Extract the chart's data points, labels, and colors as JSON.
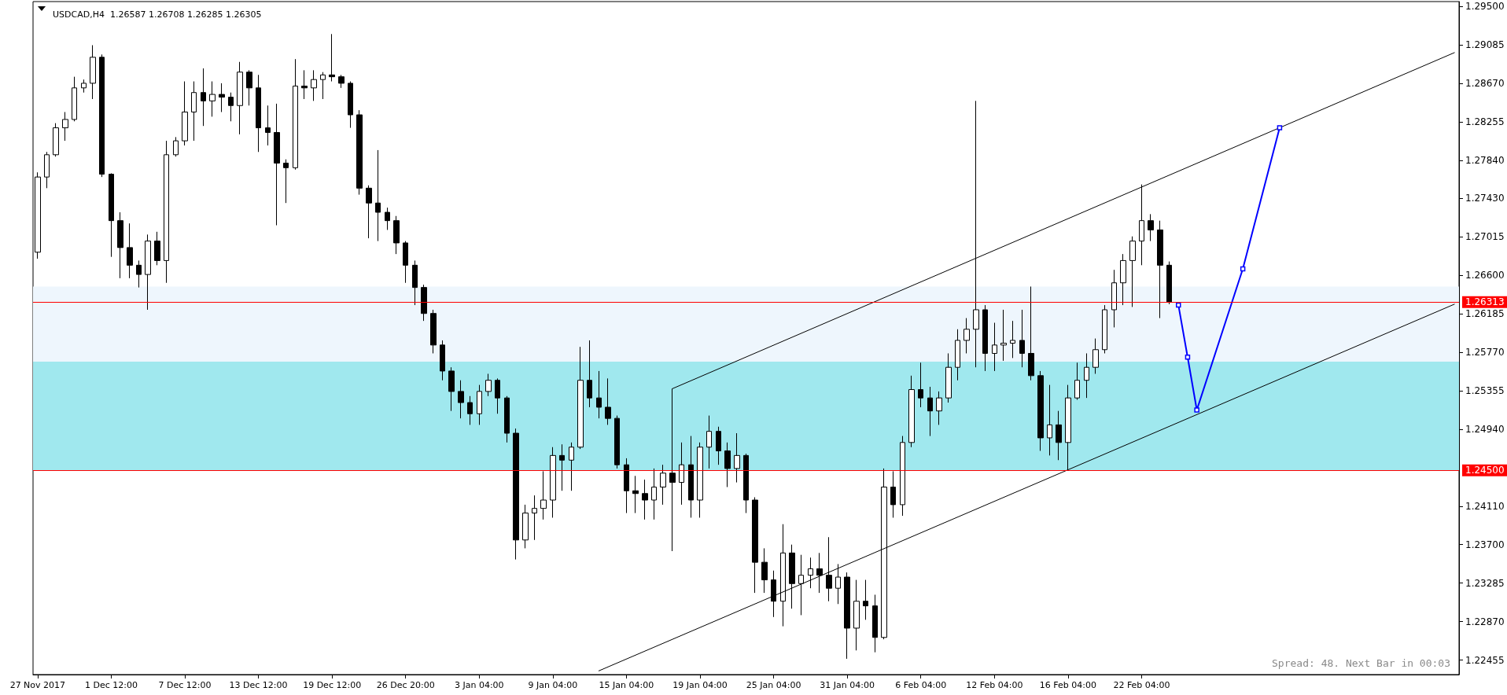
{
  "chart_data": {
    "type": "candlestick",
    "title": "USDCAD,H4  1.26587 1.26708 1.26285 1.26305",
    "annotations": [
      "Spread: 48. Next Bar in 00:03"
    ],
    "color": "#000000",
    "categories": [
      "27 Nov 2017",
      null,
      null,
      null,
      null,
      null,
      null,
      null,
      "1 Dec 12:00",
      null,
      null,
      null,
      null,
      null,
      null,
      null,
      "7 Dec 12:00",
      null,
      null,
      null,
      null,
      null,
      null,
      null,
      "13 Dec 12:00",
      null,
      null,
      null,
      null,
      null,
      null,
      null,
      "19 Dec 12:00",
      null,
      null,
      null,
      null,
      null,
      null,
      null,
      "26 Dec 20:00",
      null,
      null,
      null,
      null,
      null,
      null,
      null,
      "3 Jan 04:00",
      null,
      null,
      null,
      null,
      null,
      null,
      null,
      "9 Jan 04:00",
      null,
      null,
      null,
      null,
      null,
      null,
      null,
      "15 Jan 04:00",
      null,
      null,
      null,
      null,
      null,
      null,
      null,
      "19 Jan 04:00",
      null,
      null,
      null,
      null,
      null,
      null,
      null,
      "25 Jan 04:00",
      null,
      null,
      null,
      null,
      null,
      null,
      null,
      "31 Jan 04:00",
      null,
      null,
      null,
      null,
      null,
      null,
      null,
      "6 Feb 04:00",
      null,
      null,
      null,
      null,
      null,
      null,
      null,
      "12 Feb 04:00",
      null,
      null,
      null,
      null,
      null,
      null,
      null,
      "16 Feb 04:00",
      null,
      null,
      null,
      null,
      null,
      null,
      null,
      "22 Feb 04:00",
      null,
      null,
      null,
      null,
      null,
      null,
      null,
      null,
      null,
      null,
      null,
      null,
      null,
      null,
      null,
      null,
      null,
      null,
      null,
      null,
      null,
      null,
      null,
      null,
      null,
      null,
      null,
      null,
      null,
      null,
      null,
      null,
      null,
      null
    ],
    "ohlc": [
      [
        1.2685,
        1.2771,
        1.2678,
        1.2766
      ],
      [
        1.2766,
        1.2793,
        1.2754,
        1.279
      ],
      [
        1.279,
        1.2824,
        1.2788,
        1.2819
      ],
      [
        1.2819,
        1.2836,
        1.2805,
        1.2828
      ],
      [
        1.2828,
        1.2874,
        1.2826,
        1.2862
      ],
      [
        1.2862,
        1.2871,
        1.2857,
        1.2867
      ],
      [
        1.2867,
        1.2908,
        1.285,
        1.2895
      ],
      [
        1.2895,
        1.2898,
        1.2766,
        1.2769
      ],
      [
        1.2769,
        1.277,
        1.268,
        1.2719
      ],
      [
        1.2719,
        1.2728,
        1.2657,
        1.269
      ],
      [
        1.269,
        1.2716,
        1.2657,
        1.2671
      ],
      [
        1.2671,
        1.2676,
        1.2647,
        1.2661
      ],
      [
        1.2661,
        1.2704,
        1.2623,
        1.2697
      ],
      [
        1.2697,
        1.2707,
        1.2671,
        1.2676
      ],
      [
        1.2676,
        1.2805,
        1.2652,
        1.279
      ],
      [
        1.279,
        1.2809,
        1.2788,
        1.2805
      ],
      [
        1.2805,
        1.2869,
        1.28,
        1.2836
      ],
      [
        1.2836,
        1.2869,
        1.2805,
        1.2857
      ],
      [
        1.2857,
        1.2883,
        1.2821,
        1.2848
      ],
      [
        1.2848,
        1.2869,
        1.2831,
        1.2855
      ],
      [
        1.2855,
        1.2867,
        1.2836,
        1.2852
      ],
      [
        1.2852,
        1.2857,
        1.2826,
        1.2843
      ],
      [
        1.2843,
        1.289,
        1.2812,
        1.2879
      ],
      [
        1.2879,
        1.2881,
        1.2843,
        1.2862
      ],
      [
        1.2862,
        1.2876,
        1.2793,
        1.2819
      ],
      [
        1.2819,
        1.2843,
        1.28,
        1.2814
      ],
      [
        1.2814,
        1.2845,
        1.2714,
        1.2781
      ],
      [
        1.2781,
        1.2785,
        1.2738,
        1.2776
      ],
      [
        1.2776,
        1.2893,
        1.2774,
        1.2864
      ],
      [
        1.2864,
        1.2881,
        1.285,
        1.2862
      ],
      [
        1.2862,
        1.2881,
        1.2848,
        1.2871
      ],
      [
        1.2871,
        1.2879,
        1.285,
        1.2876
      ],
      [
        1.2876,
        1.292,
        1.2869,
        1.2874
      ],
      [
        1.2874,
        1.2876,
        1.2862,
        1.2867
      ],
      [
        1.2867,
        1.2869,
        1.2819,
        1.2833
      ],
      [
        1.2833,
        1.2838,
        1.2747,
        1.2754
      ],
      [
        1.2754,
        1.2757,
        1.27,
        1.2738
      ],
      [
        1.2738,
        1.2795,
        1.2697,
        1.2728
      ],
      [
        1.2728,
        1.2733,
        1.2709,
        1.2719
      ],
      [
        1.2719,
        1.2724,
        1.2683,
        1.2695
      ],
      [
        1.2695,
        1.2697,
        1.2652,
        1.2671
      ],
      [
        1.2671,
        1.2676,
        1.2628,
        1.2647
      ],
      [
        1.2647,
        1.265,
        1.2611,
        1.2619
      ],
      [
        1.2619,
        1.2623,
        1.2576,
        1.2585
      ],
      [
        1.2585,
        1.259,
        1.2547,
        1.2557
      ],
      [
        1.2557,
        1.2561,
        1.2514,
        1.2535
      ],
      [
        1.2535,
        1.2547,
        1.2506,
        1.2523
      ],
      [
        1.2523,
        1.253,
        1.2499,
        1.2511
      ],
      [
        1.2511,
        1.2542,
        1.2499,
        1.2535
      ],
      [
        1.2535,
        1.2554,
        1.253,
        1.2547
      ],
      [
        1.2547,
        1.2549,
        1.2511,
        1.2528
      ],
      [
        1.2528,
        1.253,
        1.248,
        1.249
      ],
      [
        1.249,
        1.2495,
        1.2354,
        1.2375
      ],
      [
        1.2375,
        1.2413,
        1.2366,
        1.2404
      ],
      [
        1.2404,
        1.2423,
        1.2375,
        1.2409
      ],
      [
        1.2409,
        1.2449,
        1.2397,
        1.2418
      ],
      [
        1.2418,
        1.2475,
        1.2399,
        1.2466
      ],
      [
        1.2466,
        1.2478,
        1.2428,
        1.2461
      ],
      [
        1.2461,
        1.248,
        1.2428,
        1.2475
      ],
      [
        1.2475,
        1.2583,
        1.2473,
        1.2547
      ],
      [
        1.2547,
        1.259,
        1.2518,
        1.2528
      ],
      [
        1.2528,
        1.2557,
        1.2506,
        1.2518
      ],
      [
        1.2518,
        1.2549,
        1.2499,
        1.2506
      ],
      [
        1.2506,
        1.2509,
        1.2452,
        1.2456
      ],
      [
        1.2456,
        1.2463,
        1.2404,
        1.2428
      ],
      [
        1.2428,
        1.2444,
        1.2404,
        1.2425
      ],
      [
        1.2425,
        1.244,
        1.2397,
        1.2418
      ],
      [
        1.2418,
        1.2452,
        1.2397,
        1.2432
      ],
      [
        1.2432,
        1.2456,
        1.2413,
        1.2447
      ],
      [
        1.2447,
        1.2538,
        1.2363,
        1.2437
      ],
      [
        1.2437,
        1.248,
        1.2413,
        1.2456
      ],
      [
        1.2456,
        1.2487,
        1.2399,
        1.2418
      ],
      [
        1.2418,
        1.248,
        1.2399,
        1.2475
      ],
      [
        1.2475,
        1.2509,
        1.2452,
        1.2492
      ],
      [
        1.2492,
        1.2497,
        1.2456,
        1.2471
      ],
      [
        1.2471,
        1.248,
        1.2432,
        1.2452
      ],
      [
        1.2452,
        1.249,
        1.2437,
        1.2466
      ],
      [
        1.2466,
        1.2468,
        1.2404,
        1.2418
      ],
      [
        1.2418,
        1.2421,
        1.2318,
        1.2351
      ],
      [
        1.2351,
        1.2366,
        1.2318,
        1.2332
      ],
      [
        1.2332,
        1.2342,
        1.2292,
        1.2309
      ],
      [
        1.2309,
        1.2392,
        1.2282,
        1.2361
      ],
      [
        1.2361,
        1.237,
        1.2301,
        1.2328
      ],
      [
        1.2328,
        1.2359,
        1.2294,
        1.2337
      ],
      [
        1.2337,
        1.2356,
        1.2323,
        1.2344
      ],
      [
        1.2344,
        1.2361,
        1.2318,
        1.2337
      ],
      [
        1.2337,
        1.2378,
        1.2309,
        1.2323
      ],
      [
        1.2323,
        1.2349,
        1.2306,
        1.2335
      ],
      [
        1.2335,
        1.234,
        1.2247,
        1.228
      ],
      [
        1.228,
        1.2332,
        1.2256,
        1.2309
      ],
      [
        1.2309,
        1.2332,
        1.2289,
        1.2304
      ],
      [
        1.2304,
        1.2316,
        1.2254,
        1.227
      ],
      [
        1.227,
        1.2452,
        1.2268,
        1.2432
      ],
      [
        1.2432,
        1.2449,
        1.2399,
        1.2413
      ],
      [
        1.2413,
        1.2487,
        1.2401,
        1.248
      ],
      [
        1.248,
        1.2552,
        1.2475,
        1.2537
      ],
      [
        1.2537,
        1.2566,
        1.2518,
        1.2528
      ],
      [
        1.2528,
        1.254,
        1.2487,
        1.2514
      ],
      [
        1.2514,
        1.2535,
        1.2499,
        1.2528
      ],
      [
        1.2528,
        1.2576,
        1.2523,
        1.2561
      ],
      [
        1.2561,
        1.2602,
        1.2547,
        1.259
      ],
      [
        1.259,
        1.2614,
        1.2576,
        1.2602
      ],
      [
        1.2602,
        1.2848,
        1.2561,
        1.2623
      ],
      [
        1.2623,
        1.2628,
        1.2557,
        1.2576
      ],
      [
        1.2576,
        1.2609,
        1.2557,
        1.2585
      ],
      [
        1.2585,
        1.2623,
        1.2568,
        1.2587
      ],
      [
        1.2587,
        1.2611,
        1.2571,
        1.259
      ],
      [
        1.259,
        1.2623,
        1.2561,
        1.2576
      ],
      [
        1.2576,
        1.2648,
        1.2547,
        1.2552
      ],
      [
        1.2552,
        1.2557,
        1.2471,
        1.2485
      ],
      [
        1.2485,
        1.2542,
        1.2466,
        1.2499
      ],
      [
        1.2499,
        1.2514,
        1.2461,
        1.248
      ],
      [
        1.248,
        1.2542,
        1.245,
        1.2528
      ],
      [
        1.2528,
        1.2566,
        1.2526,
        1.2547
      ],
      [
        1.2547,
        1.2576,
        1.2528,
        1.2561
      ],
      [
        1.2561,
        1.2592,
        1.2554,
        1.258
      ],
      [
        1.258,
        1.2628,
        1.2576,
        1.2623
      ],
      [
        1.2623,
        1.2666,
        1.2604,
        1.2652
      ],
      [
        1.2652,
        1.2683,
        1.2628,
        1.2676
      ],
      [
        1.2676,
        1.2702,
        1.2626,
        1.2697
      ],
      [
        1.2697,
        1.2758,
        1.2671,
        1.2719
      ],
      [
        1.2719,
        1.2726,
        1.2697,
        1.2709
      ],
      [
        1.2709,
        1.2719,
        1.2614,
        1.2671
      ],
      [
        1.2671,
        1.2675,
        1.2629,
        1.2631
      ],
      null,
      null,
      null,
      null,
      null,
      null,
      null,
      null,
      null,
      null,
      null,
      null,
      null,
      null,
      null,
      null,
      null,
      null,
      null,
      null,
      null,
      null,
      null,
      null,
      null,
      null,
      null,
      null,
      null,
      null,
      null
    ],
    "series": [
      {
        "type": "line",
        "color": "#000000",
        "marker": "none",
        "values": [
          null,
          null,
          null,
          null,
          null,
          null,
          null,
          null,
          null,
          null,
          null,
          null,
          null,
          null,
          null,
          null,
          null,
          null,
          null,
          null,
          null,
          null,
          null,
          null,
          null,
          null,
          null,
          null,
          null,
          null,
          null,
          null,
          null,
          null,
          null,
          null,
          null,
          null,
          null,
          null,
          null,
          null,
          null,
          null,
          null,
          null,
          null,
          null,
          null,
          null,
          null,
          null,
          null,
          null,
          null,
          null,
          null,
          null,
          null,
          null,
          null,
          null,
          null,
          null,
          null,
          null,
          null,
          null,
          null,
          1.2538,
          null,
          null,
          null,
          null,
          null,
          null,
          null,
          null,
          null,
          null,
          null,
          null,
          null,
          null,
          null,
          null,
          null,
          null,
          null,
          null,
          null,
          null,
          null,
          null,
          null,
          null,
          null,
          null,
          null,
          null,
          null,
          null,
          null,
          null,
          null,
          null,
          null,
          null,
          null,
          null,
          null,
          null,
          null,
          null,
          null,
          null,
          null,
          null,
          null,
          null,
          null,
          null,
          null,
          null,
          null,
          null,
          null,
          null,
          null,
          null,
          null,
          null,
          null,
          null,
          null,
          null,
          null,
          null,
          null,
          null,
          null,
          null,
          null,
          null,
          null,
          null,
          null,
          null,
          null,
          null,
          null,
          null,
          null,
          null,
          1.29
        ]
      },
      {
        "type": "line",
        "color": "#000000",
        "marker": "none",
        "values": [
          null,
          null,
          null,
          null,
          null,
          null,
          null,
          null,
          null,
          null,
          null,
          null,
          null,
          null,
          null,
          null,
          null,
          null,
          null,
          null,
          null,
          null,
          null,
          null,
          null,
          null,
          null,
          null,
          null,
          null,
          null,
          null,
          null,
          null,
          null,
          null,
          null,
          null,
          null,
          null,
          null,
          null,
          null,
          null,
          null,
          null,
          null,
          null,
          null,
          null,
          null,
          null,
          null,
          null,
          null,
          null,
          null,
          null,
          null,
          null,
          null,
          1.2234,
          null,
          null,
          null,
          null,
          null,
          null,
          null,
          null,
          null,
          null,
          null,
          null,
          null,
          null,
          null,
          null,
          null,
          null,
          null,
          null,
          null,
          null,
          null,
          null,
          null,
          null,
          null,
          null,
          null,
          null,
          null,
          null,
          null,
          null,
          null,
          null,
          null,
          null,
          null,
          null,
          null,
          null,
          null,
          null,
          null,
          null,
          null,
          null,
          null,
          null,
          null,
          null,
          null,
          null,
          null,
          null,
          null,
          null,
          null,
          null,
          null,
          null,
          null,
          null,
          null,
          null,
          null,
          null,
          null,
          null,
          null,
          null,
          null,
          null,
          null,
          null,
          null,
          null,
          null,
          null,
          null,
          null,
          null,
          null,
          null,
          null,
          null,
          null,
          null,
          null,
          null,
          null,
          1.2629
        ]
      },
      {
        "type": "line",
        "color": "#0000ff",
        "marker": "square",
        "values": [
          null,
          null,
          null,
          null,
          null,
          null,
          null,
          null,
          null,
          null,
          null,
          null,
          null,
          null,
          null,
          null,
          null,
          null,
          null,
          null,
          null,
          null,
          null,
          null,
          null,
          null,
          null,
          null,
          null,
          null,
          null,
          null,
          null,
          null,
          null,
          null,
          null,
          null,
          null,
          null,
          null,
          null,
          null,
          null,
          null,
          null,
          null,
          null,
          null,
          null,
          null,
          null,
          null,
          null,
          null,
          null,
          null,
          null,
          null,
          null,
          null,
          null,
          null,
          null,
          null,
          null,
          null,
          null,
          null,
          null,
          null,
          null,
          null,
          null,
          null,
          null,
          null,
          null,
          null,
          null,
          null,
          null,
          null,
          null,
          null,
          null,
          null,
          null,
          null,
          null,
          null,
          null,
          null,
          null,
          null,
          null,
          null,
          null,
          null,
          null,
          null,
          null,
          null,
          null,
          null,
          null,
          null,
          null,
          null,
          null,
          null,
          null,
          null,
          null,
          null,
          null,
          null,
          null,
          null,
          null,
          null,
          null,
          null,
          null,
          1.2628,
          1.2572,
          1.2515,
          null,
          null,
          null,
          null,
          1.2667,
          null,
          null,
          null,
          1.2819,
          null,
          null,
          null,
          null,
          null,
          null,
          null,
          null,
          null,
          null,
          null,
          null,
          null,
          null,
          null,
          null,
          null,
          null,
          null
        ]
      }
    ],
    "ref_lines": [
      {
        "axis": "y",
        "value": 1.26313,
        "label": "1.26313",
        "color": "#ff0000"
      },
      {
        "axis": "y",
        "value": 1.245,
        "label": "1.24500",
        "color": "#ff0000"
      }
    ],
    "bands": [
      {
        "axis": "y",
        "from": 1.245,
        "to": 1.2648,
        "color": "#eef6fd"
      },
      {
        "axis": "y",
        "from": 1.245,
        "to": 1.2567,
        "color": "#a0e8ee"
      }
    ],
    "ylim": [
      1.223,
      1.2955
    ],
    "yticks": [
      {
        "value": 1.295,
        "label": "1.29500"
      },
      {
        "value": 1.29085,
        "label": "1.29085"
      },
      {
        "value": 1.2867,
        "label": "1.28670"
      },
      {
        "value": 1.28255,
        "label": "1.28255"
      },
      {
        "value": 1.2784,
        "label": "1.27840"
      },
      {
        "value": 1.2743,
        "label": "1.27430"
      },
      {
        "value": 1.27015,
        "label": "1.27015"
      },
      {
        "value": 1.266,
        "label": "1.26600"
      },
      {
        "value": 1.26185,
        "label": "1.26185"
      },
      {
        "value": 1.2577,
        "label": "1.25770"
      },
      {
        "value": 1.25355,
        "label": "1.25355"
      },
      {
        "value": 1.2494,
        "label": "1.24940"
      },
      {
        "value": 1.2411,
        "label": "1.24110"
      },
      {
        "value": 1.237,
        "label": "1.23700"
      },
      {
        "value": 1.23285,
        "label": "1.23285"
      },
      {
        "value": 1.2287,
        "label": "1.22870"
      },
      {
        "value": 1.22455,
        "label": "1.22455"
      }
    ],
    "line_style": "solid"
  }
}
